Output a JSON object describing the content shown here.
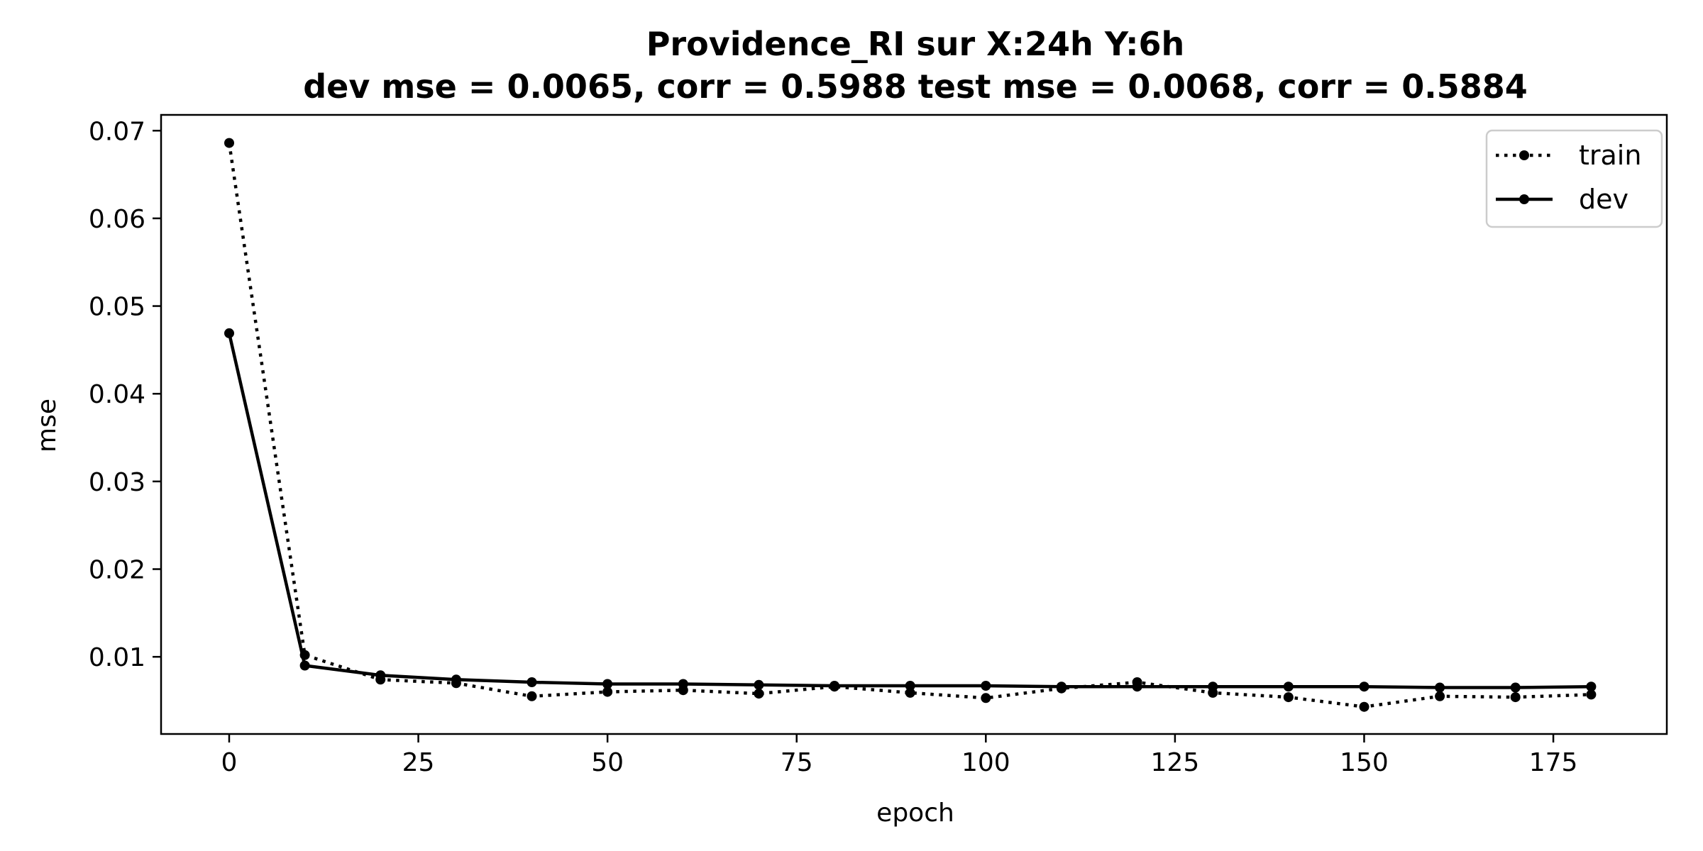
{
  "chart_data": {
    "type": "line",
    "title": "Providence_RI   sur   X:24h   Y:6h",
    "subtitle": "dev mse = 0.0065, corr = 0.5988   test mse = 0.0068, corr = 0.5884",
    "xlabel": "epoch",
    "ylabel": "mse",
    "xlim": [
      -9,
      190
    ],
    "ylim": [
      0.0012,
      0.0718
    ],
    "xticks": [
      0,
      25,
      50,
      75,
      100,
      125,
      150,
      175
    ],
    "yticks": [
      0.01,
      0.02,
      0.03,
      0.04,
      0.05,
      0.06,
      0.07
    ],
    "xtick_labels": [
      "0",
      "25",
      "50",
      "75",
      "100",
      "125",
      "150",
      "175"
    ],
    "ytick_labels": [
      "0.01",
      "0.02",
      "0.03",
      "0.04",
      "0.05",
      "0.06",
      "0.07"
    ],
    "grid": false,
    "legend": "top-right",
    "x": [
      0,
      10,
      20,
      30,
      40,
      50,
      60,
      70,
      80,
      90,
      100,
      110,
      120,
      130,
      140,
      150,
      160,
      170,
      180
    ],
    "series": [
      {
        "name": "train",
        "style": "dotted",
        "color": "#000000",
        "values": [
          0.0686,
          0.0102,
          0.0074,
          0.007,
          0.0055,
          0.006,
          0.0062,
          0.0058,
          0.0066,
          0.0059,
          0.0053,
          0.0064,
          0.0071,
          0.0059,
          0.0054,
          0.0043,
          0.0055,
          0.0054,
          0.0057
        ]
      },
      {
        "name": "dev",
        "style": "solid",
        "color": "#000000",
        "values": [
          0.0469,
          0.009,
          0.0079,
          0.0074,
          0.0071,
          0.0069,
          0.0069,
          0.0068,
          0.0067,
          0.0067,
          0.0067,
          0.0066,
          0.0066,
          0.0066,
          0.0066,
          0.0066,
          0.0065,
          0.0065,
          0.0066
        ]
      }
    ]
  }
}
